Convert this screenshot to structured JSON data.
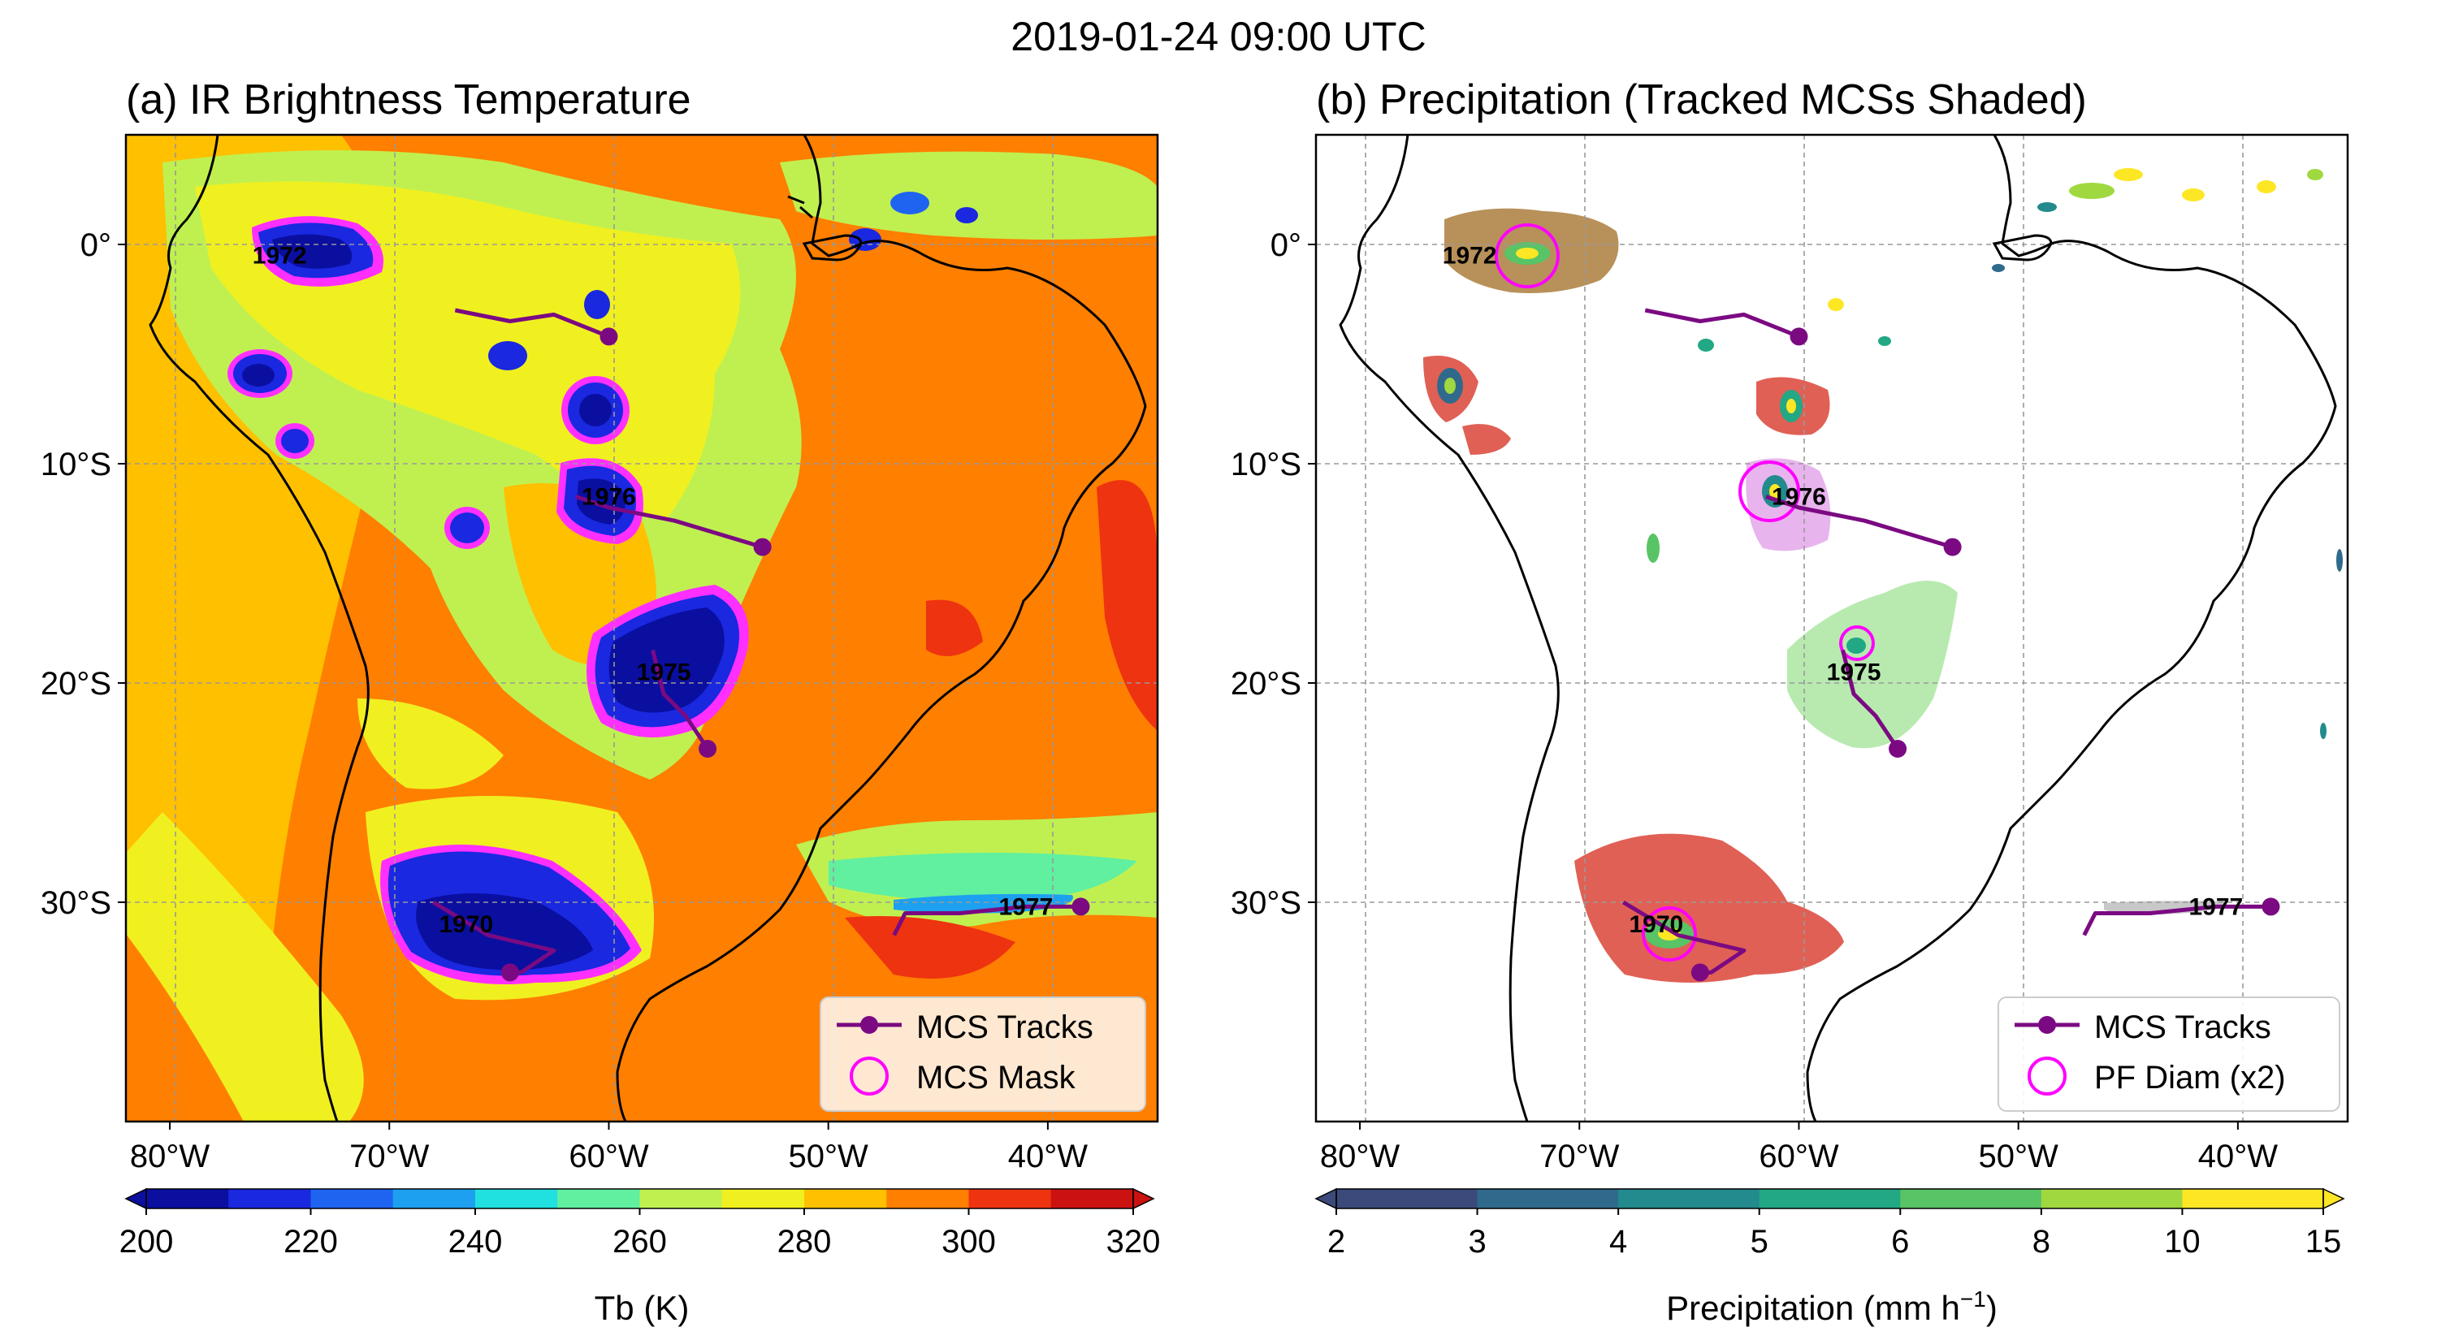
{
  "suptitle": "2019-01-24 09:00 UTC",
  "chart_data": [
    {
      "type": "map",
      "title": "(a) IR Brightness Temperature",
      "lon_range": [
        -82,
        -35
      ],
      "lat_range": [
        -40,
        5
      ],
      "xticks": [
        {
          "value": -80,
          "label": "80°W"
        },
        {
          "value": -70,
          "label": "70°W"
        },
        {
          "value": -60,
          "label": "60°W"
        },
        {
          "value": -50,
          "label": "50°W"
        },
        {
          "value": -40,
          "label": "40°W"
        }
      ],
      "yticks": [
        {
          "value": 0,
          "label": "0°"
        },
        {
          "value": -10,
          "label": "10°S"
        },
        {
          "value": -20,
          "label": "20°S"
        },
        {
          "value": -30,
          "label": "30°S"
        }
      ],
      "field": "Tb",
      "colorbar": {
        "label": "Tb (K)",
        "ticks": [
          "200",
          "220",
          "240",
          "260",
          "280",
          "300",
          "320"
        ],
        "levels": [
          200,
          210,
          220,
          230,
          240,
          250,
          260,
          270,
          280,
          290,
          300,
          310,
          320
        ],
        "colors": [
          "#0a0fa0",
          "#1a28e0",
          "#1e64f0",
          "#1ea0f0",
          "#20e0e0",
          "#60f0a0",
          "#c0f050",
          "#f0f020",
          "#ffc000",
          "#ff7f00",
          "#ee3311",
          "#cc1111"
        ],
        "extend": "both"
      },
      "legend": {
        "position": "lower right",
        "entries": [
          "MCS Tracks",
          "MCS Mask"
        ]
      },
      "systems": [
        {
          "id": "1972",
          "track": [
            [
              -67,
              -3
            ],
            [
              -64.5,
              -3.5
            ],
            [
              -62.5,
              -3.2
            ],
            [
              -61,
              -3.8
            ],
            [
              -60,
              -4.2
            ]
          ],
          "label_at": [
            -75,
            -0.5
          ]
        },
        {
          "id": "1976",
          "track": [
            [
              -61.5,
              -11.5
            ],
            [
              -60,
              -12
            ],
            [
              -57,
              -12.6
            ],
            [
              -55,
              -13.2
            ],
            [
              -53,
              -13.8
            ]
          ],
          "label_at": [
            -60,
            -11.5
          ]
        },
        {
          "id": "1975",
          "track": [
            [
              -58,
              -18.5
            ],
            [
              -57.5,
              -20.5
            ],
            [
              -56.5,
              -21.5
            ],
            [
              -55.5,
              -23
            ]
          ],
          "label_at": [
            -57.5,
            -19.5
          ]
        },
        {
          "id": "1970",
          "track": [
            [
              -68,
              -30
            ],
            [
              -65.5,
              -31.5
            ],
            [
              -62.5,
              -32.2
            ],
            [
              -64,
              -33.2
            ],
            [
              -64.5,
              -33.2
            ]
          ],
          "label_at": [
            -66.5,
            -31
          ]
        },
        {
          "id": "1977",
          "track": [
            [
              -47,
              -31.5
            ],
            [
              -46.5,
              -30.5
            ],
            [
              -44,
              -30.5
            ],
            [
              -41,
              -30.2
            ],
            [
              -38.5,
              -30.2
            ]
          ],
          "label_at": [
            -41,
            -30.2
          ]
        }
      ]
    },
    {
      "type": "map",
      "title": "(b) Precipitation (Tracked MCSs Shaded)",
      "lon_range": [
        -82,
        -35
      ],
      "lat_range": [
        -40,
        5
      ],
      "xticks": [
        {
          "value": -80,
          "label": "80°W"
        },
        {
          "value": -70,
          "label": "70°W"
        },
        {
          "value": -60,
          "label": "60°W"
        },
        {
          "value": -50,
          "label": "50°W"
        },
        {
          "value": -40,
          "label": "40°W"
        }
      ],
      "yticks": [
        {
          "value": 0,
          "label": "0°"
        },
        {
          "value": -10,
          "label": "10°S"
        },
        {
          "value": -20,
          "label": "20°S"
        },
        {
          "value": -30,
          "label": "30°S"
        }
      ],
      "field": "precipitation",
      "colorbar": {
        "label": "Precipitation (mm h",
        "label_sup": "−1",
        "label_tail": ")",
        "ticks": [
          "2",
          "3",
          "4",
          "5",
          "6",
          "8",
          "10",
          "15"
        ],
        "colors": [
          "#3b4a7a",
          "#2f6a8c",
          "#238a8d",
          "#22a884",
          "#58c466",
          "#a0d83f",
          "#fde725"
        ],
        "extend": "both"
      },
      "legend": {
        "position": "lower right",
        "entries": [
          "MCS Tracks",
          "PF Diam (x2)"
        ]
      },
      "mask_colors": {
        "1972": "#b8915a",
        "1970": "#e06055",
        "1976": "#e8b4ee",
        "1975": "#b8eab0",
        "other": "#e06055"
      }
    }
  ]
}
